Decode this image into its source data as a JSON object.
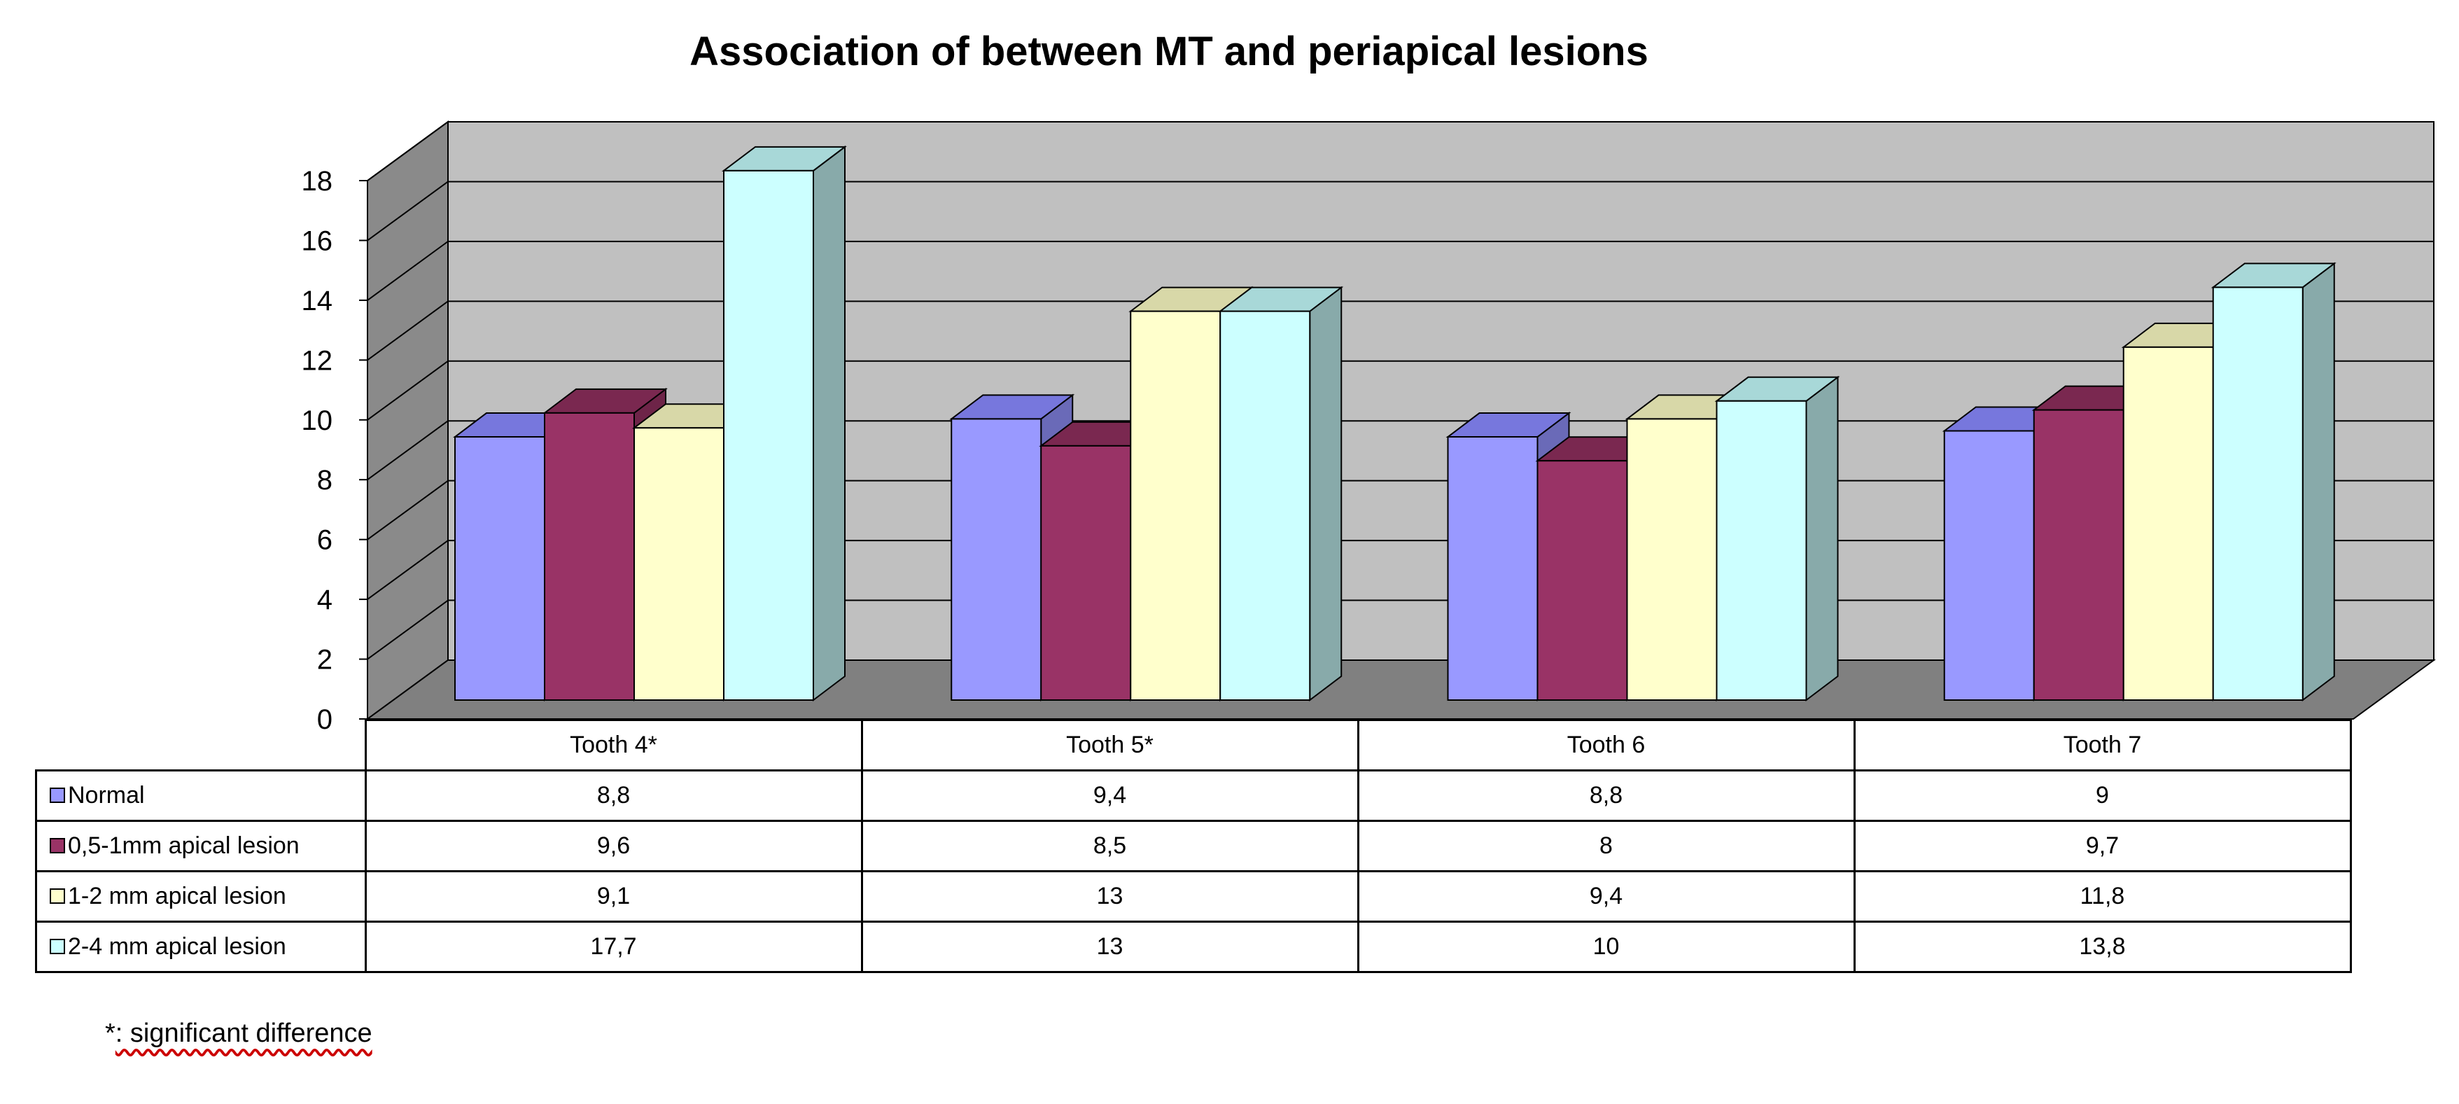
{
  "chart_data": {
    "type": "bar",
    "title": "Association of between MT and periapical lesions",
    "categories": [
      "Tooth 4*",
      "Tooth 5*",
      "Tooth 6",
      "Tooth 7"
    ],
    "series": [
      {
        "name": "Normal",
        "values": [
          8.8,
          9.4,
          8.8,
          9
        ],
        "labels": [
          "8,8",
          "9,4",
          "8,8",
          "9"
        ],
        "color": "#9999ff",
        "top": "#7777dd",
        "side": "#6a6ab8"
      },
      {
        "name": "0,5-1mm apical lesion",
        "values": [
          9.6,
          8.5,
          8,
          9.7
        ],
        "labels": [
          "9,6",
          "8,5",
          "8",
          "9,7"
        ],
        "color": "#993366",
        "top": "#7a2850",
        "side": "#6e2448"
      },
      {
        "name": "1-2 mm apical lesion",
        "values": [
          9.1,
          13,
          9.4,
          11.8
        ],
        "labels": [
          "9,1",
          "13",
          "9,4",
          "11,8"
        ],
        "color": "#ffffcc",
        "top": "#d8d8a8",
        "side": "#b8b890"
      },
      {
        "name": "2-4 mm apical lesion",
        "values": [
          17.7,
          13,
          10,
          13.8
        ],
        "labels": [
          "17,7",
          "13",
          "10",
          "13,8"
        ],
        "color": "#ccffff",
        "top": "#a8d8d8",
        "side": "#88aaaa"
      }
    ],
    "yticks": [
      "0",
      "2",
      "4",
      "6",
      "8",
      "10",
      "12",
      "14",
      "16",
      "18"
    ],
    "ylim": [
      0,
      18
    ],
    "grid": true,
    "legend": "data-table-rows"
  },
  "footnote": {
    "marker": "*",
    "text": ": significant difference"
  }
}
